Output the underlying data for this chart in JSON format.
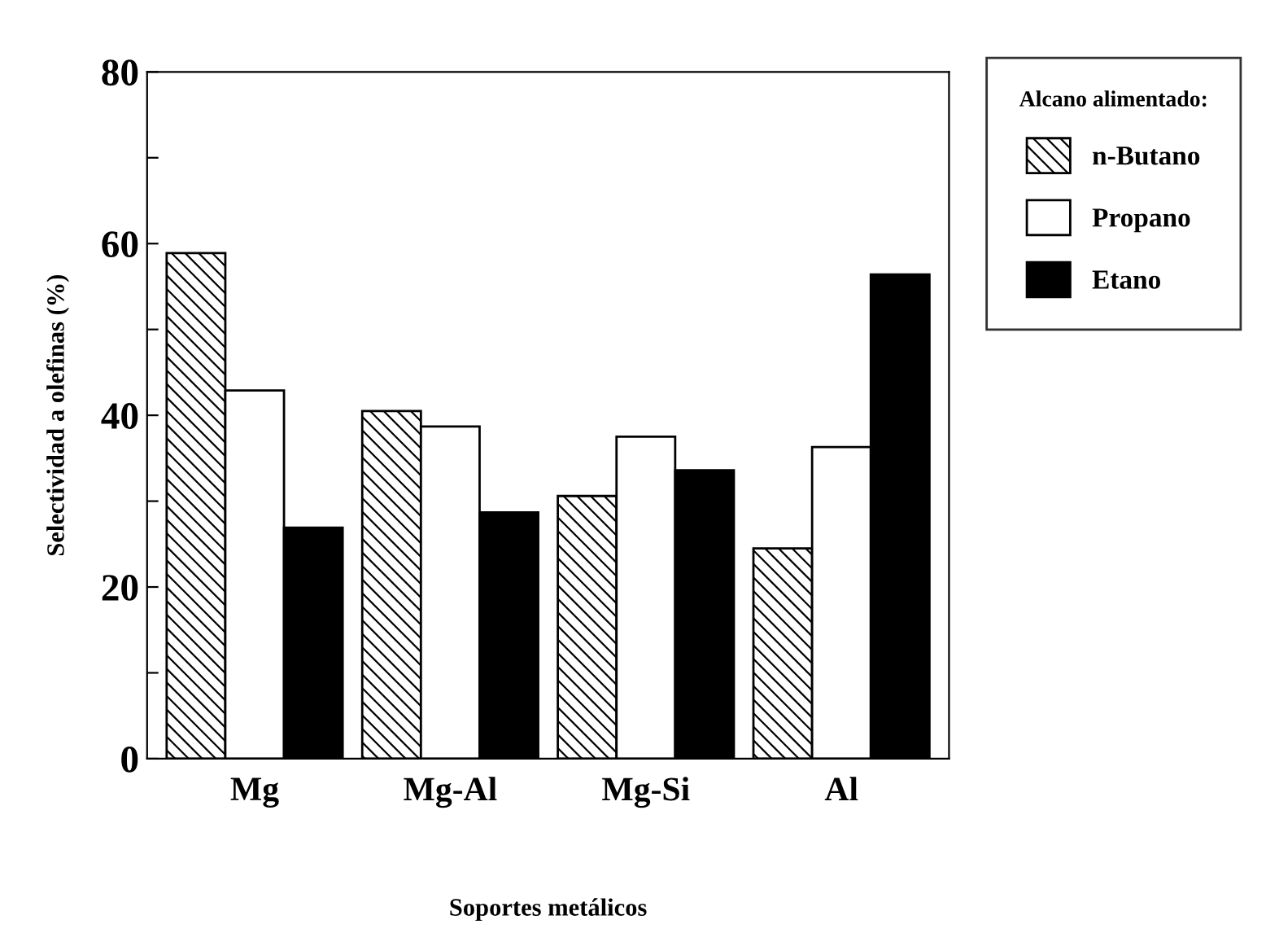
{
  "chart_data": {
    "type": "bar",
    "xlabel": "Soportes metálicos",
    "ylabel": "Selectividad a olefinas (%)",
    "legend_title": "Alcano alimentado:",
    "categories": [
      "Mg",
      "Mg-Al",
      "Mg-Si",
      "Al"
    ],
    "series": [
      {
        "name": "n-Butano",
        "color": "#000000",
        "values": [
          58.9,
          40.5,
          30.6,
          24.5
        ]
      },
      {
        "name": "Propano",
        "color": "#ffffff",
        "values": [
          42.9,
          38.7,
          37.5,
          36.3
        ]
      },
      {
        "name": "Etano",
        "color": "#000000",
        "values": [
          26.9,
          28.7,
          33.6,
          56.4
        ]
      }
    ],
    "ylim": [
      0,
      80
    ],
    "yticks": [
      0,
      {
        "value": 10,
        "label": null
      },
      20,
      {
        "value": 30,
        "label": null
      },
      40,
      {
        "value": 50,
        "label": null
      },
      60,
      {
        "value": 70,
        "label": null
      },
      80
    ],
    "legend": "top right",
    "grid": false
  }
}
